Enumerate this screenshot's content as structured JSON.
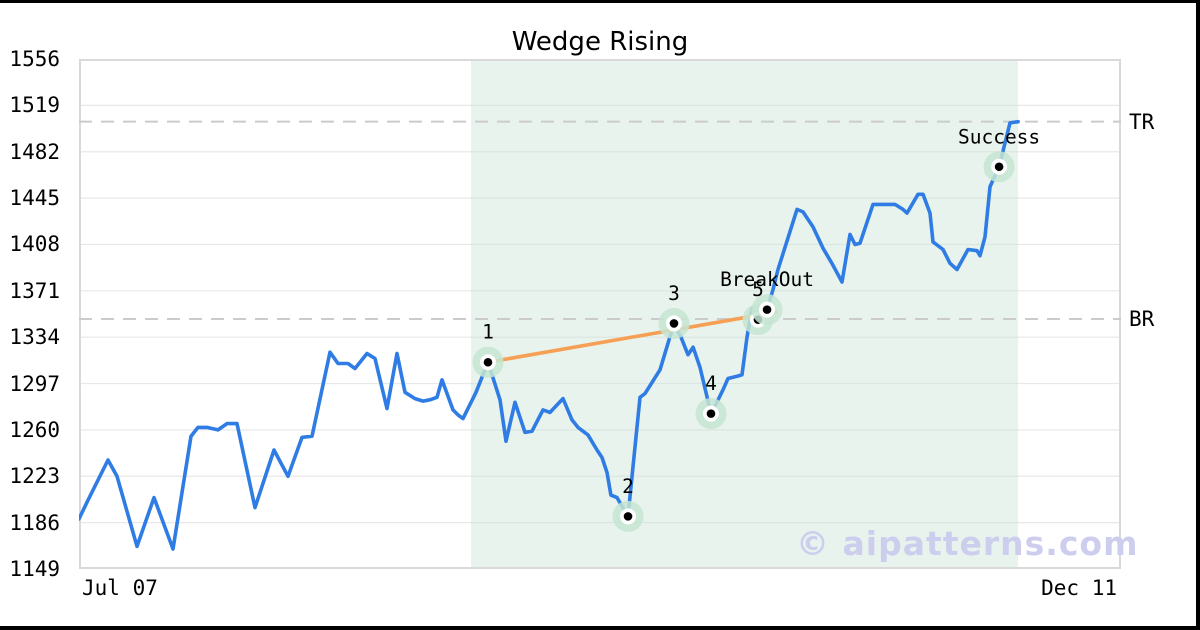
{
  "title": "Wedge Rising",
  "watermark": "© aipatterns.com",
  "x_axis": {
    "left_label": "Jul 07",
    "right_label": "Dec 11"
  },
  "y_axis": {
    "min": 1149,
    "max": 1556,
    "ticks": [
      1149,
      1186,
      1223,
      1260,
      1297,
      1334,
      1371,
      1408,
      1445,
      1482,
      1519,
      1556
    ]
  },
  "colors": {
    "price_line": "#2e7ce4",
    "trendline": "#f5a055",
    "pattern_region": "rgba(205,229,216,0.45)",
    "marker_halo": "#c6e5d2",
    "marker_ring": "#ffffff",
    "marker_dot": "#000000",
    "gridline": "#e8e8e8",
    "frame": "#d9d9d9",
    "dashed_line": "#cbcbcb",
    "text": "#000000"
  },
  "chart_data": {
    "type": "line",
    "title": "Wedge Rising",
    "x_axis_note": "time fraction across plot, 0 = Jul 07, 1 = Dec 11",
    "ylim": [
      1149,
      1556
    ],
    "grid": "horizontal",
    "pattern_region": {
      "x_from": 0.3762,
      "x_to": 0.9012
    },
    "hlines": [
      {
        "label": "TR",
        "value": 1506
      },
      {
        "label": "BR",
        "value": 1348.5
      }
    ],
    "trendline": {
      "from": [
        0.3925,
        1314
      ],
      "to": [
        0.6689,
        1354
      ]
    },
    "series": [
      {
        "name": "price",
        "points": [
          [
            0.0,
            1189
          ],
          [
            0.0086,
            1204
          ],
          [
            0.0278,
            1236
          ],
          [
            0.0365,
            1223
          ],
          [
            0.0557,
            1167
          ],
          [
            0.072,
            1206
          ],
          [
            0.0902,
            1165
          ],
          [
            0.1075,
            1255
          ],
          [
            0.1142,
            1262
          ],
          [
            0.1228,
            1262
          ],
          [
            0.1334,
            1260
          ],
          [
            0.142,
            1265
          ],
          [
            0.1516,
            1265
          ],
          [
            0.1689,
            1198
          ],
          [
            0.1871,
            1244
          ],
          [
            0.2006,
            1223
          ],
          [
            0.214,
            1254
          ],
          [
            0.2236,
            1255
          ],
          [
            0.2409,
            1322
          ],
          [
            0.2486,
            1313
          ],
          [
            0.2582,
            1313
          ],
          [
            0.2649,
            1309
          ],
          [
            0.2764,
            1321
          ],
          [
            0.2841,
            1317
          ],
          [
            0.2956,
            1277
          ],
          [
            0.3052,
            1321
          ],
          [
            0.3129,
            1290
          ],
          [
            0.3225,
            1285
          ],
          [
            0.3301,
            1283
          ],
          [
            0.3369,
            1284
          ],
          [
            0.3436,
            1286
          ],
          [
            0.3484,
            1300
          ],
          [
            0.3589,
            1276
          ],
          [
            0.3637,
            1272
          ],
          [
            0.3685,
            1269
          ],
          [
            0.381,
            1290
          ],
          [
            0.3925,
            1314
          ],
          [
            0.404,
            1284
          ],
          [
            0.4098,
            1251
          ],
          [
            0.4184,
            1282
          ],
          [
            0.428,
            1258
          ],
          [
            0.4347,
            1259
          ],
          [
            0.4453,
            1276
          ],
          [
            0.452,
            1274
          ],
          [
            0.4645,
            1285
          ],
          [
            0.4731,
            1268
          ],
          [
            0.4789,
            1262
          ],
          [
            0.4885,
            1256
          ],
          [
            0.4971,
            1244
          ],
          [
            0.5019,
            1238
          ],
          [
            0.5067,
            1226
          ],
          [
            0.5105,
            1208
          ],
          [
            0.5163,
            1206
          ],
          [
            0.5269,
            1191
          ],
          [
            0.5384,
            1286
          ],
          [
            0.5432,
            1289
          ],
          [
            0.5576,
            1308
          ],
          [
            0.571,
            1345
          ],
          [
            0.5777,
            1334
          ],
          [
            0.5845,
            1320
          ],
          [
            0.5893,
            1326
          ],
          [
            0.596,
            1310
          ],
          [
            0.6065,
            1273
          ],
          [
            0.6133,
            1284
          ],
          [
            0.618,
            1292
          ],
          [
            0.6228,
            1301
          ],
          [
            0.6324,
            1303
          ],
          [
            0.6363,
            1304
          ],
          [
            0.6411,
            1334
          ],
          [
            0.6459,
            1357
          ],
          [
            0.6516,
            1348
          ],
          [
            0.6603,
            1356
          ],
          [
            0.666,
            1372
          ],
          [
            0.6708,
            1388
          ],
          [
            0.6891,
            1436
          ],
          [
            0.6948,
            1434
          ],
          [
            0.7044,
            1422
          ],
          [
            0.714,
            1405
          ],
          [
            0.7226,
            1393
          ],
          [
            0.7322,
            1378
          ],
          [
            0.7399,
            1416
          ],
          [
            0.7447,
            1408
          ],
          [
            0.7495,
            1409
          ],
          [
            0.762,
            1440
          ],
          [
            0.7687,
            1440
          ],
          [
            0.7831,
            1440
          ],
          [
            0.7908,
            1436
          ],
          [
            0.7946,
            1433
          ],
          [
            0.8052,
            1448
          ],
          [
            0.81,
            1448
          ],
          [
            0.8167,
            1433
          ],
          [
            0.8196,
            1410
          ],
          [
            0.8292,
            1404
          ],
          [
            0.8359,
            1393
          ],
          [
            0.8426,
            1388
          ],
          [
            0.8532,
            1404
          ],
          [
            0.8618,
            1403
          ],
          [
            0.8647,
            1399
          ],
          [
            0.8695,
            1414
          ],
          [
            0.8743,
            1454
          ],
          [
            0.883,
            1470
          ],
          [
            0.8935,
            1505
          ],
          [
            0.9012,
            1506
          ]
        ]
      }
    ],
    "annotations": [
      {
        "label": "1",
        "x": 0.3925,
        "value": 1314
      },
      {
        "label": "2",
        "x": 0.5269,
        "value": 1191
      },
      {
        "label": "3",
        "x": 0.571,
        "value": 1345
      },
      {
        "label": "4",
        "x": 0.6065,
        "value": 1273
      },
      {
        "label": "5",
        "x": 0.6516,
        "value": 1348
      },
      {
        "label": "BreakOut",
        "x": 0.6603,
        "value": 1356
      },
      {
        "label": "Success",
        "x": 0.883,
        "value": 1470
      }
    ]
  }
}
